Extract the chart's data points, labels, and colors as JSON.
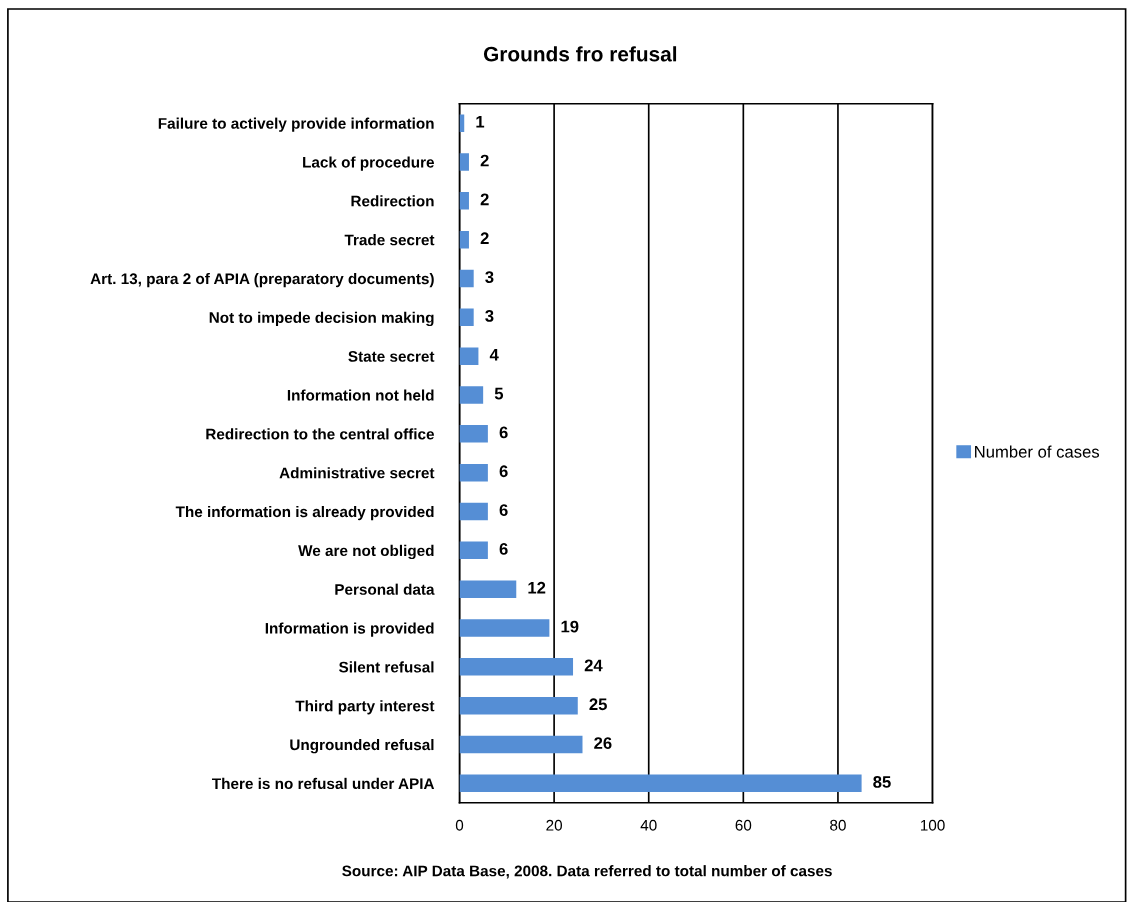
{
  "chart_data": {
    "type": "bar",
    "orientation": "horizontal",
    "title": "Grounds fro refusal",
    "categories": [
      "Failure to actively provide information",
      "Lack of procedure",
      "Redirection",
      "Trade secret",
      "Art. 13, para 2 of APIA (preparatory documents)",
      "Not to impede decision making",
      "State secret",
      "Information not held",
      "Redirection to the central office",
      "Administrative secret",
      "The information is already provided",
      "We are not obliged",
      "Personal data",
      "Information is provided",
      "Silent refusal",
      "Third party interest",
      "Ungrounded refusal",
      "There is no refusal under APIA"
    ],
    "series": [
      {
        "name": "Number of cases",
        "color": "#558ed5",
        "values": [
          1,
          2,
          2,
          2,
          3,
          3,
          4,
          5,
          6,
          6,
          6,
          6,
          12,
          19,
          24,
          25,
          26,
          85
        ]
      }
    ],
    "xlim": [
      0,
      100
    ],
    "xticks": [
      0,
      20,
      40,
      60,
      80,
      100
    ],
    "grid": "x",
    "legend": "right",
    "data_labels": true,
    "annotations": [
      "Source: AIP Data Base, 2008. Data referred to total number of cases"
    ]
  }
}
